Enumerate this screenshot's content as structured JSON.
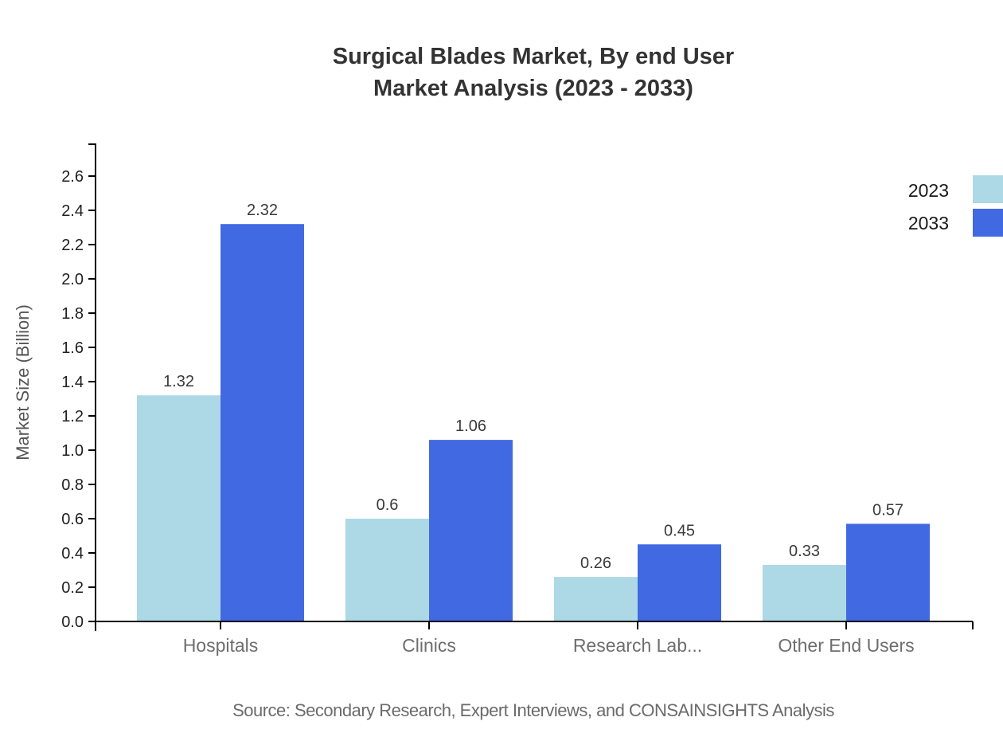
{
  "title": {
    "line1": "Surgical Blades Market, By end User",
    "line2": "Market Analysis (2023 - 2033)"
  },
  "source": "Source: Secondary Research, Expert Interviews, and CONSAINSIGHTS Analysis",
  "chart_data": {
    "type": "bar",
    "categories": [
      "Hospitals",
      "Clinics",
      "Research Lab...",
      "Other End Users"
    ],
    "series": [
      {
        "name": "2023",
        "color": "#ADD8E6",
        "values": [
          1.32,
          0.6,
          0.26,
          0.33
        ],
        "labels": [
          "1.32",
          "0.6",
          "0.26",
          "0.33"
        ]
      },
      {
        "name": "2033",
        "color": "#4169E1",
        "values": [
          2.32,
          1.06,
          0.45,
          0.57
        ],
        "labels": [
          "2.32",
          "1.06",
          "0.45",
          "0.57"
        ]
      }
    ],
    "xlabel": "",
    "ylabel": "Market Size (Billion)",
    "ylim": [
      0,
      2.7
    ],
    "yticks": [
      "0.0",
      "0.2",
      "0.4",
      "0.6",
      "0.8",
      "1.0",
      "1.2",
      "1.4",
      "1.6",
      "1.8",
      "2.0",
      "2.2",
      "2.4",
      "2.6"
    ],
    "grid": false,
    "legend_position": "top-right",
    "bar_value_labels_shown": true
  }
}
